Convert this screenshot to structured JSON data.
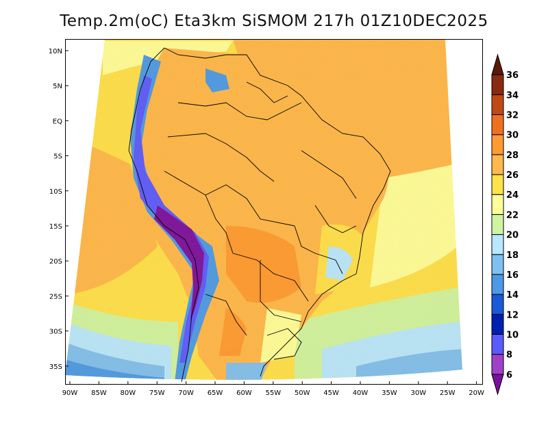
{
  "title": "Temp.2m(oC) Eta3km SiSMOM 217h 01Z10DEC2025",
  "map": {
    "variable": "Temp.2m",
    "units": "oC",
    "model": "Eta3km SiSMOM",
    "forecast_hour": "217h",
    "valid_time": "01Z10DEC2025",
    "lat_labels": [
      "10N",
      "5N",
      "EQ",
      "5S",
      "10S",
      "15S",
      "20S",
      "25S",
      "30S",
      "35S"
    ],
    "lon_labels": [
      "90W",
      "85W",
      "80W",
      "75W",
      "70W",
      "65W",
      "60W",
      "55W",
      "50W",
      "45W",
      "40W",
      "35W",
      "30W",
      "25W",
      "20W"
    ]
  },
  "colorbar": {
    "levels": [
      "6",
      "8",
      "10",
      "12",
      "14",
      "16",
      "18",
      "20",
      "22",
      "24",
      "26",
      "28",
      "30",
      "32",
      "34",
      "36"
    ],
    "colors": [
      "#7a0fa0",
      "#a040c8",
      "#5a5aff",
      "#0020b0",
      "#1a5ad8",
      "#4a9ae8",
      "#7fc0f0",
      "#b8e8ff",
      "#d0f5a0",
      "#ffff9a",
      "#ffe14a",
      "#ffb84a",
      "#ff9a30",
      "#f07020",
      "#c04a14",
      "#8a2a10",
      "#5a1a08"
    ]
  }
}
